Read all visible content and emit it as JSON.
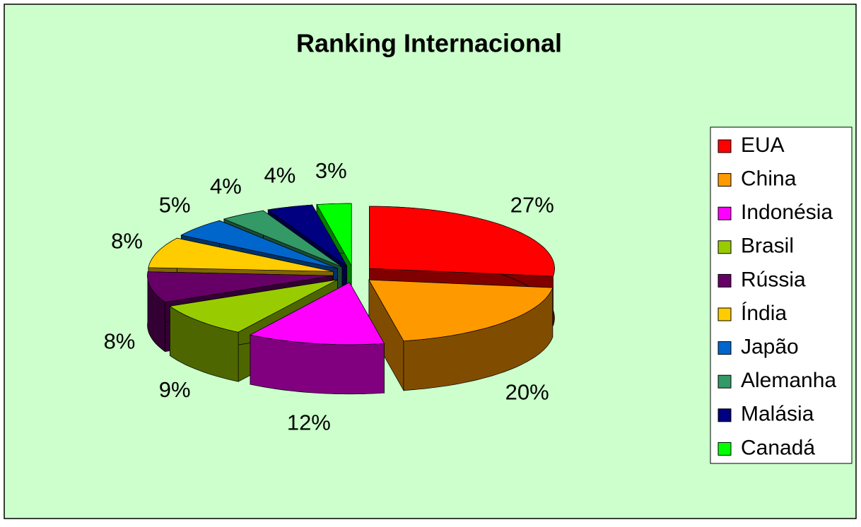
{
  "chart_data": {
    "type": "pie",
    "title": "Ranking Internacional",
    "categories": [
      "EUA",
      "China",
      "Indonésia",
      "Brasil",
      "Rússia",
      "Índia",
      "Japão",
      "Alemanha",
      "Malásia",
      "Canadá"
    ],
    "values": [
      27,
      20,
      12,
      9,
      8,
      8,
      5,
      4,
      4,
      3
    ],
    "value_labels": [
      "27%",
      "20%",
      "12%",
      "9%",
      "8%",
      "8%",
      "5%",
      "4%",
      "4%",
      "3%"
    ],
    "colors": [
      "#ff0000",
      "#ff9900",
      "#ff00ff",
      "#99cc00",
      "#660066",
      "#ffcc00",
      "#0066cc",
      "#339966",
      "#000080",
      "#00ff00"
    ],
    "legend": "right"
  }
}
